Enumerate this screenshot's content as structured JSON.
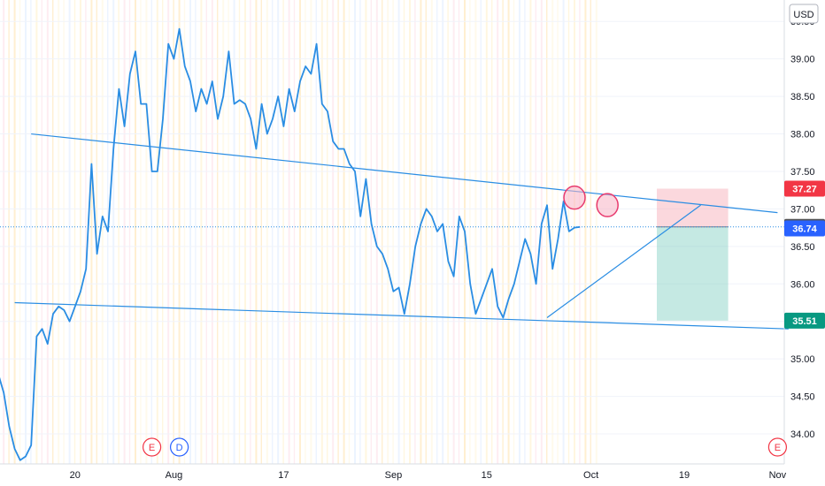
{
  "currency_label": "USD",
  "chart_data": {
    "type": "line",
    "title": "",
    "xlabel": "",
    "ylabel": "",
    "ylim": [
      33.6,
      39.75
    ],
    "y_ticks": [
      34.0,
      34.5,
      35.0,
      35.5,
      36.0,
      36.5,
      37.0,
      37.5,
      38.0,
      38.5,
      39.0,
      39.5
    ],
    "x_ticks": [
      {
        "label": "20",
        "index": 14
      },
      {
        "label": "Aug",
        "index": 32
      },
      {
        "label": "17",
        "index": 52
      },
      {
        "label": "Sep",
        "index": 72
      },
      {
        "label": "15",
        "index": 89
      },
      {
        "label": "Oct",
        "index": 108
      },
      {
        "label": "19",
        "index": 125
      },
      {
        "label": "Nov",
        "index": 142
      }
    ],
    "grid": true,
    "series": [
      {
        "color": "#2a8de3",
        "values": [
          34.8,
          34.55,
          34.1,
          33.8,
          33.65,
          33.7,
          33.85,
          35.3,
          35.4,
          35.2,
          35.6,
          35.7,
          35.65,
          35.5,
          35.7,
          35.9,
          36.2,
          37.6,
          36.4,
          36.9,
          36.7,
          37.8,
          38.6,
          38.1,
          38.8,
          39.1,
          38.4,
          38.4,
          37.5,
          37.5,
          38.2,
          39.2,
          39.0,
          39.4,
          38.9,
          38.7,
          38.3,
          38.6,
          38.4,
          38.7,
          38.2,
          38.5,
          39.1,
          38.4,
          38.45,
          38.4,
          38.2,
          37.8,
          38.4,
          38.0,
          38.2,
          38.5,
          38.1,
          38.6,
          38.3,
          38.7,
          38.9,
          38.8,
          39.2,
          38.4,
          38.3,
          37.9,
          37.8,
          37.8,
          37.6,
          37.5,
          36.9,
          37.4,
          36.8,
          36.5,
          36.4,
          36.2,
          35.9,
          35.95,
          35.6,
          36.0,
          36.5,
          36.8,
          37.0,
          36.9,
          36.7,
          36.8,
          36.3,
          36.1,
          36.9,
          36.7,
          36.0,
          35.6,
          35.8,
          36.0,
          36.2,
          35.7,
          35.55,
          35.8,
          36.0,
          36.3,
          36.6,
          36.4,
          36.0,
          36.8,
          37.05,
          36.2,
          36.6,
          37.1,
          36.7,
          36.75,
          36.76
        ]
      }
    ],
    "current_price": {
      "value": 36.76,
      "label": "36.76",
      "color": "#555555"
    },
    "price_labels": [
      {
        "value": 37.27,
        "label": "37.27",
        "color": "#f23645"
      },
      {
        "value": 36.74,
        "label": "36.74",
        "color": "#2962ff"
      },
      {
        "value": 35.51,
        "label": "35.51",
        "color": "#089981"
      }
    ],
    "trendlines": [
      {
        "from": [
          6,
          38.0
        ],
        "to": [
          142,
          36.95
        ],
        "color": "#2a8de3"
      },
      {
        "from": [
          3,
          35.75
        ],
        "to": [
          144,
          35.4
        ],
        "color": "#2a8de3"
      },
      {
        "from": [
          100,
          35.55
        ],
        "to": [
          128,
          37.05
        ],
        "color": "#2a8de3"
      }
    ],
    "position": {
      "entry": 36.76,
      "stop": 37.27,
      "target": 35.51,
      "x_from": 120,
      "x_to": 133
    },
    "markers": [
      {
        "index": 105,
        "value": 37.15
      },
      {
        "index": 111,
        "value": 37.05
      }
    ],
    "events": [
      {
        "label": "E",
        "index": 28,
        "color": "#f23645"
      },
      {
        "label": "D",
        "index": 33,
        "color": "#2962ff"
      },
      {
        "label": "E",
        "index": 142,
        "color": "#f23645"
      }
    ]
  }
}
